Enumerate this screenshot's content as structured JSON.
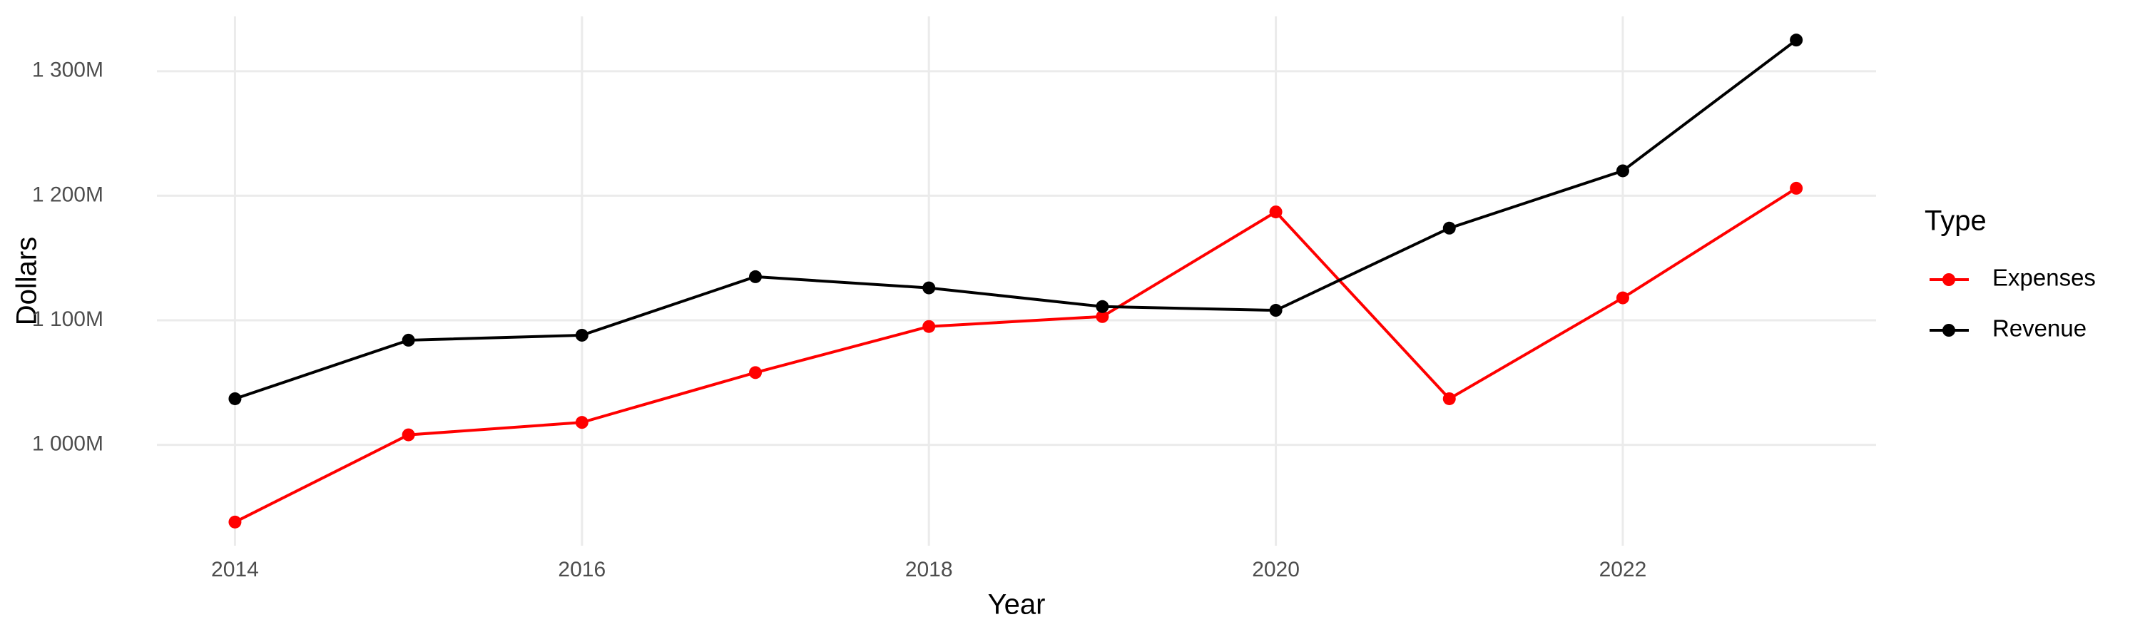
{
  "chart_data": {
    "type": "line",
    "x_label": "Year",
    "y_label": "Dollars",
    "legend_title": "Type",
    "x": [
      2014,
      2015,
      2016,
      2017,
      2018,
      2019,
      2020,
      2021,
      2022,
      2023
    ],
    "series": [
      {
        "name": "Expenses",
        "color": "#ff0000",
        "values": [
          938000000,
          1008000000,
          1018000000,
          1058000000,
          1095000000,
          1103000000,
          1187000000,
          1037000000,
          1118000000,
          1206000000
        ]
      },
      {
        "name": "Revenue",
        "color": "#000000",
        "values": [
          1037000000,
          1084000000,
          1088000000,
          1135000000,
          1126000000,
          1111000000,
          1108000000,
          1174000000,
          1220000000,
          1325000000
        ]
      }
    ],
    "xlim": [
      2013.55,
      2023.46
    ],
    "xticks": [
      2014,
      2016,
      2018,
      2020,
      2022
    ],
    "ylim": [
      919000000,
      1344000000
    ],
    "yticks": [
      {
        "value": 1000000000,
        "label": "1 000M"
      },
      {
        "value": 1100000000,
        "label": "1 100M"
      },
      {
        "value": 1200000000,
        "label": "1 200M"
      },
      {
        "value": 1300000000,
        "label": "1 300M"
      }
    ],
    "grid": true
  }
}
